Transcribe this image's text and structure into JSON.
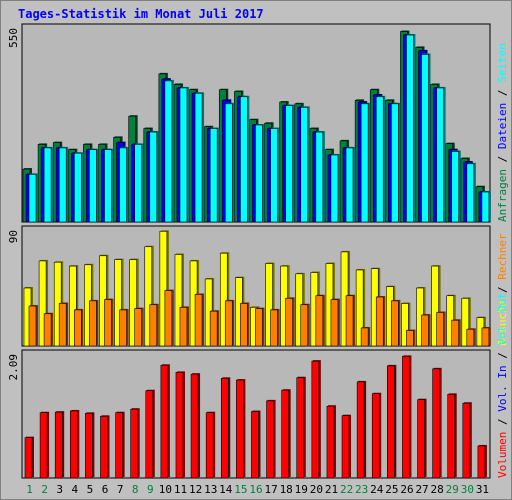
{
  "title": "Tages-Statistik im Monat Juli 2017",
  "colors": {
    "hits": "#008040",
    "files": "#0000ff",
    "pages": "#00ffff",
    "visits": "#ffff00",
    "sites": "#ff8000",
    "kbytes": "#ff0000",
    "weekday_label": "#000000",
    "weekend_label": "#008040"
  },
  "chart_data": [
    {
      "type": "bar",
      "panel": "requests",
      "ymax_label": "550",
      "ylim": [
        0,
        550
      ],
      "categories": [
        "1",
        "2",
        "3",
        "4",
        "5",
        "6",
        "7",
        "8",
        "9",
        "10",
        "11",
        "12",
        "13",
        "14",
        "15",
        "16",
        "17",
        "18",
        "19",
        "20",
        "21",
        "22",
        "23",
        "24",
        "25",
        "26",
        "27",
        "28",
        "29",
        "30",
        "31"
      ],
      "weekend_days": [
        "1",
        "2",
        "8",
        "9",
        "15",
        "16",
        "22",
        "23",
        "29",
        "30"
      ],
      "series": [
        {
          "name": "Anfragen",
          "values": [
            150,
            220,
            225,
            205,
            220,
            220,
            240,
            300,
            265,
            420,
            390,
            375,
            270,
            375,
            370,
            290,
            280,
            340,
            335,
            265,
            205,
            230,
            345,
            375,
            345,
            540,
            495,
            390,
            222,
            180,
            100
          ]
        },
        {
          "name": "Dateien",
          "values": [
            135,
            210,
            210,
            195,
            205,
            205,
            225,
            220,
            255,
            405,
            380,
            365,
            265,
            345,
            355,
            275,
            265,
            330,
            325,
            255,
            190,
            210,
            340,
            360,
            335,
            530,
            485,
            380,
            205,
            170,
            85
          ]
        },
        {
          "name": "Seiten",
          "values": [
            135,
            210,
            210,
            195,
            205,
            205,
            210,
            220,
            255,
            400,
            380,
            365,
            265,
            335,
            355,
            275,
            265,
            330,
            325,
            255,
            190,
            210,
            335,
            355,
            335,
            530,
            475,
            380,
            200,
            165,
            85
          ]
        }
      ],
      "legend": [
        "Anfragen",
        "Dateien",
        "Seiten"
      ]
    },
    {
      "type": "bar",
      "panel": "visits",
      "ymax_label": "90",
      "ylim": [
        0,
        90
      ],
      "categories": [
        "1",
        "2",
        "3",
        "4",
        "5",
        "6",
        "7",
        "8",
        "9",
        "10",
        "11",
        "12",
        "13",
        "14",
        "15",
        "16",
        "17",
        "18",
        "19",
        "20",
        "21",
        "22",
        "23",
        "24",
        "25",
        "26",
        "27",
        "28",
        "29",
        "30",
        "31"
      ],
      "series": [
        {
          "name": "Besuche",
          "values": [
            45,
            66,
            65,
            62,
            63,
            70,
            67,
            67,
            77,
            89,
            71,
            66,
            52,
            72,
            53,
            30,
            64,
            62,
            56,
            57,
            64,
            73,
            59,
            60,
            46,
            33,
            45,
            62,
            39,
            37,
            22
          ]
        },
        {
          "name": "Rechner",
          "values": [
            31,
            25,
            33,
            28,
            35,
            36,
            28,
            29,
            32,
            43,
            30,
            40,
            27,
            35,
            33,
            29,
            28,
            37,
            32,
            39,
            36,
            39,
            14,
            38,
            35,
            12,
            24,
            26,
            20,
            13,
            14
          ]
        }
      ],
      "legend": [
        "Besuche",
        "Rechner"
      ]
    },
    {
      "type": "bar",
      "panel": "volume",
      "ymax_label": "2.09",
      "ylim": [
        0,
        2.09
      ],
      "categories": [
        "1",
        "2",
        "3",
        "4",
        "5",
        "6",
        "7",
        "8",
        "9",
        "10",
        "11",
        "12",
        "13",
        "14",
        "15",
        "16",
        "17",
        "18",
        "19",
        "20",
        "21",
        "22",
        "23",
        "24",
        "25",
        "26",
        "27",
        "28",
        "29",
        "30",
        "31"
      ],
      "series": [
        {
          "name": "Volumen",
          "values": [
            0.68,
            1.1,
            1.11,
            1.13,
            1.09,
            1.04,
            1.1,
            1.16,
            1.47,
            1.9,
            1.78,
            1.75,
            1.1,
            1.68,
            1.65,
            1.12,
            1.3,
            1.48,
            1.69,
            1.97,
            1.21,
            1.05,
            1.62,
            1.42,
            1.89,
            2.05,
            1.32,
            1.84,
            1.41,
            1.26,
            0.54
          ]
        }
      ],
      "legend": [
        "Volumen"
      ]
    }
  ],
  "right_legend": {
    "top": [
      {
        "text": "Anfragen",
        "color": "#008040"
      },
      {
        "text": " / ",
        "color": "#000000"
      },
      {
        "text": "Dateien",
        "color": "#0000ff"
      },
      {
        "text": " / ",
        "color": "#000000"
      },
      {
        "text": "Seiten",
        "color": "#00ffff"
      }
    ],
    "middle": [
      {
        "text": "Besuche",
        "color": "#ffff00"
      },
      {
        "text": " / ",
        "color": "#000000"
      },
      {
        "text": "Rechner",
        "color": "#ff8000"
      }
    ],
    "bottom": [
      {
        "text": "Volumen",
        "color": "#ff0000"
      },
      {
        "text": " / ",
        "color": "#000000"
      },
      {
        "text": "Vol. In",
        "color": "#0000ff"
      },
      {
        "text": " / ",
        "color": "#000000"
      },
      {
        "text": "Vol. Out",
        "color": "#00ffff"
      }
    ]
  }
}
